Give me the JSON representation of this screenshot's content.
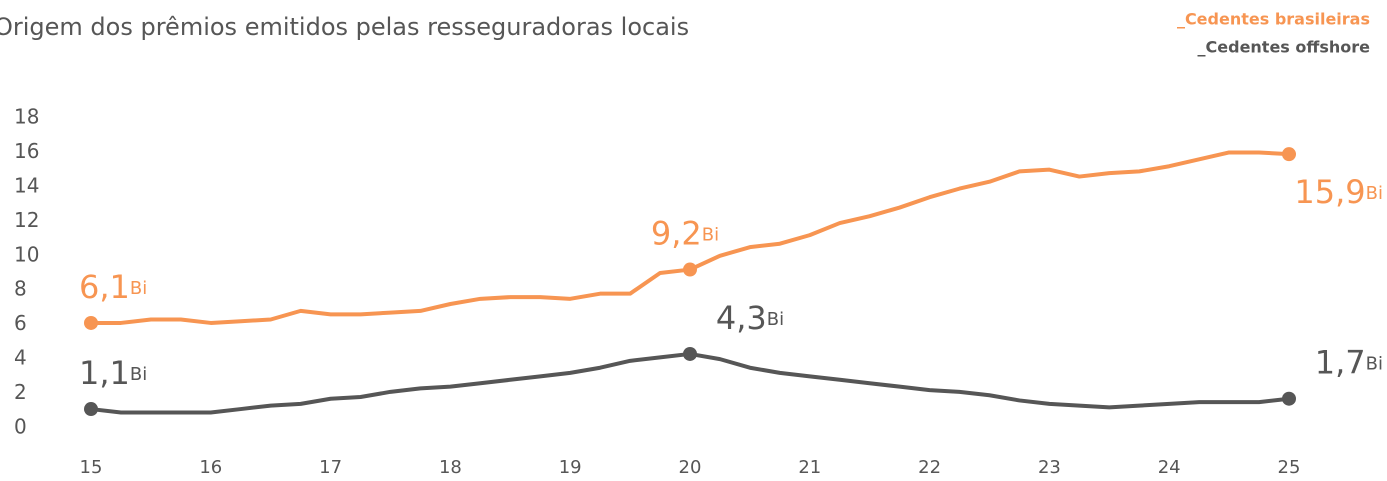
{
  "chart_data": {
    "type": "line",
    "title": "Origem dos prêmios emitidos pelas resseguradoras locais",
    "x": [
      15,
      15.25,
      15.5,
      15.75,
      16,
      16.25,
      16.5,
      16.75,
      17,
      17.25,
      17.5,
      17.75,
      18,
      18.25,
      18.5,
      18.75,
      19,
      19.25,
      19.5,
      19.75,
      20,
      20.25,
      20.5,
      20.75,
      21,
      21.25,
      21.5,
      21.75,
      22,
      22.25,
      22.5,
      22.75,
      23,
      23.25,
      23.5,
      23.75,
      24,
      24.25,
      24.5,
      24.75,
      25
    ],
    "series": [
      {
        "name": "_Cedentes brasileiras",
        "color": "#f79552",
        "values": [
          6.1,
          6.1,
          6.3,
          6.3,
          6.1,
          6.2,
          6.3,
          6.8,
          6.6,
          6.6,
          6.7,
          6.8,
          7.2,
          7.5,
          7.6,
          7.6,
          7.5,
          7.8,
          7.8,
          9.0,
          9.2,
          10.0,
          10.5,
          10.7,
          11.2,
          11.9,
          12.3,
          12.8,
          13.4,
          13.9,
          14.3,
          14.9,
          15.0,
          14.6,
          14.8,
          14.9,
          15.2,
          15.6,
          16.0,
          16.0,
          15.9
        ],
        "annotations": [
          {
            "x": 15,
            "label": "6,1",
            "unit": "Bi"
          },
          {
            "x": 20,
            "label": "9,2",
            "unit": "Bi"
          },
          {
            "x": 25,
            "label": "15,9",
            "unit": "Bi"
          }
        ]
      },
      {
        "name": "_Cedentes offshore",
        "color": "#565656",
        "values": [
          1.1,
          0.9,
          0.9,
          0.9,
          0.9,
          1.1,
          1.3,
          1.4,
          1.7,
          1.8,
          2.1,
          2.3,
          2.4,
          2.6,
          2.8,
          3.0,
          3.2,
          3.5,
          3.9,
          4.1,
          4.3,
          4.0,
          3.5,
          3.2,
          3.0,
          2.8,
          2.6,
          2.4,
          2.2,
          2.1,
          1.9,
          1.6,
          1.4,
          1.3,
          1.2,
          1.3,
          1.4,
          1.5,
          1.5,
          1.5,
          1.7
        ],
        "annotations": [
          {
            "x": 15,
            "label": "1,1",
            "unit": "Bi"
          },
          {
            "x": 20,
            "label": "4,3",
            "unit": "Bi"
          },
          {
            "x": 25,
            "label": "1,7",
            "unit": "Bi"
          }
        ]
      }
    ],
    "xlim": [
      15,
      25
    ],
    "xticks": [
      15,
      16,
      17,
      18,
      19,
      20,
      21,
      22,
      23,
      24,
      25
    ],
    "ylim": [
      0,
      18
    ],
    "yticks": [
      0,
      2,
      4,
      6,
      8,
      10,
      12,
      14,
      16,
      18
    ],
    "grid": false,
    "legend": "upper right"
  }
}
